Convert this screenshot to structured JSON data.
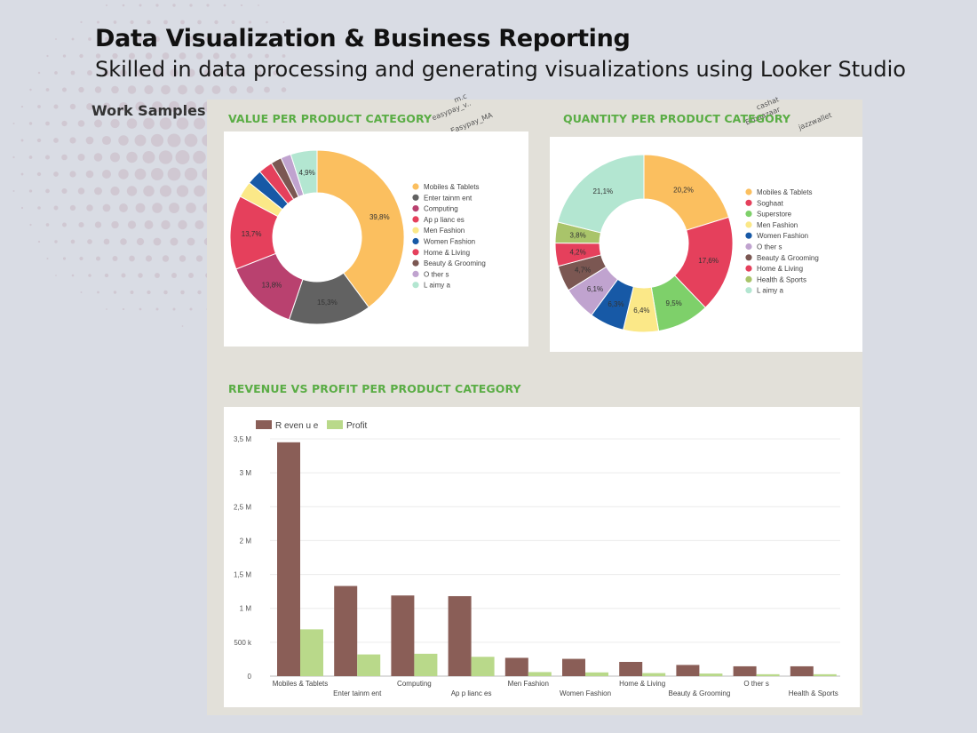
{
  "header": {
    "title": "Data Visualization & Business Reporting",
    "subtitle": "Skilled in data processing and generating visualizations using Looker Studio",
    "section_label": "Work Samples"
  },
  "scribbles": [
    "m.c",
    "easypay_v..",
    "Easypay_MA",
    "cashat",
    "Ezbaazaar",
    "jazzwallet"
  ],
  "colors": {
    "background": "#d9dce4",
    "report_background": "#e2e0d9",
    "accent": "#5aad45",
    "revenue": "#8a5e57",
    "profit": "#b9d98a"
  },
  "chart_data": [
    {
      "type": "pie",
      "donut": true,
      "title": "VALUE PER PRODUCT CATEGORY",
      "legend_position": "right",
      "slices": [
        {
          "name": "Mobiles & Tablets",
          "value": 39.8,
          "label": "39,8%",
          "color": "#fbbf5f"
        },
        {
          "name": "Enter tainm ent",
          "value": 15.3,
          "label": "15,3%",
          "color": "#626262"
        },
        {
          "name": "Computing",
          "value": 13.8,
          "label": "13,8%",
          "color": "#b9416f"
        },
        {
          "name": "Ap p lianc es",
          "value": 13.7,
          "label": "13,7%",
          "color": "#e5405c"
        },
        {
          "name": "Men Fashion",
          "value": 3.0,
          "label": "",
          "color": "#fbe888"
        },
        {
          "name": "Women Fashion",
          "value": 2.8,
          "label": "",
          "color": "#1759a6"
        },
        {
          "name": "Home & Living",
          "value": 2.6,
          "label": "",
          "color": "#e5405c"
        },
        {
          "name": "Beauty & Grooming",
          "value": 2.0,
          "label": "",
          "color": "#7b5752"
        },
        {
          "name": "O ther s",
          "value": 1.9,
          "label": "",
          "color": "#c0a3cf"
        },
        {
          "name": "L aimy a",
          "value": 4.9,
          "label": "4,9%",
          "color": "#b3e6d1"
        }
      ]
    },
    {
      "type": "pie",
      "donut": true,
      "title": "QUANTITY PER PRODUCT CATEGORY",
      "legend_position": "right",
      "slices": [
        {
          "name": "Mobiles & Tablets",
          "value": 20.2,
          "label": "20,2%",
          "color": "#fbbf5f"
        },
        {
          "name": "Soghaat",
          "value": 17.6,
          "label": "17,6%",
          "color": "#e5405c"
        },
        {
          "name": "Superstore",
          "value": 9.5,
          "label": "9,5%",
          "color": "#7ed06a"
        },
        {
          "name": "Men Fashion",
          "value": 6.4,
          "label": "6,4%",
          "color": "#fbe888"
        },
        {
          "name": "Women Fashion",
          "value": 6.3,
          "label": "6,3%",
          "color": "#1759a6"
        },
        {
          "name": "O ther s",
          "value": 6.1,
          "label": "6,1%",
          "color": "#c0a3cf"
        },
        {
          "name": "Beauty & Grooming",
          "value": 4.7,
          "label": "4,7%",
          "color": "#7b5752"
        },
        {
          "name": "Home & Living",
          "value": 4.2,
          "label": "4,2%",
          "color": "#e5405c"
        },
        {
          "name": "Health & Sports",
          "value": 3.8,
          "label": "3,8%",
          "color": "#a9c46a"
        },
        {
          "name": "L aimy a",
          "value": 21.1,
          "label": "21,1%",
          "color": "#b3e6d1"
        }
      ]
    },
    {
      "type": "bar",
      "title": "REVENUE VS PROFIT PER  PRODUCT CATEGORY",
      "categories": [
        "Mobiles & Tablets",
        "Enter tainm ent",
        "Computing",
        "Ap p lianc es",
        "Men Fashion",
        "Women Fashion",
        "Home & Living",
        "Beauty & Grooming",
        "O ther s",
        "Health & Sports"
      ],
      "series": [
        {
          "name": "R even u e",
          "color": "#8a5e57",
          "values": [
            3450000,
            1330000,
            1190000,
            1180000,
            270000,
            255000,
            210000,
            165000,
            145000,
            145000
          ]
        },
        {
          "name": "Profit",
          "color": "#b9d98a",
          "values": [
            690000,
            320000,
            330000,
            285000,
            60000,
            55000,
            45000,
            38000,
            28000,
            28000
          ]
        }
      ],
      "ylim": [
        0,
        3500000
      ],
      "yticks": [
        0,
        500000,
        1000000,
        1500000,
        2000000,
        2500000,
        3000000,
        3500000
      ],
      "ytick_labels": [
        "0",
        "500 k",
        "1 M",
        "1,5 M",
        "2 M",
        "2,5 M",
        "3 M",
        "3,5 M"
      ],
      "legend_position": "top-left",
      "grid": true
    }
  ]
}
